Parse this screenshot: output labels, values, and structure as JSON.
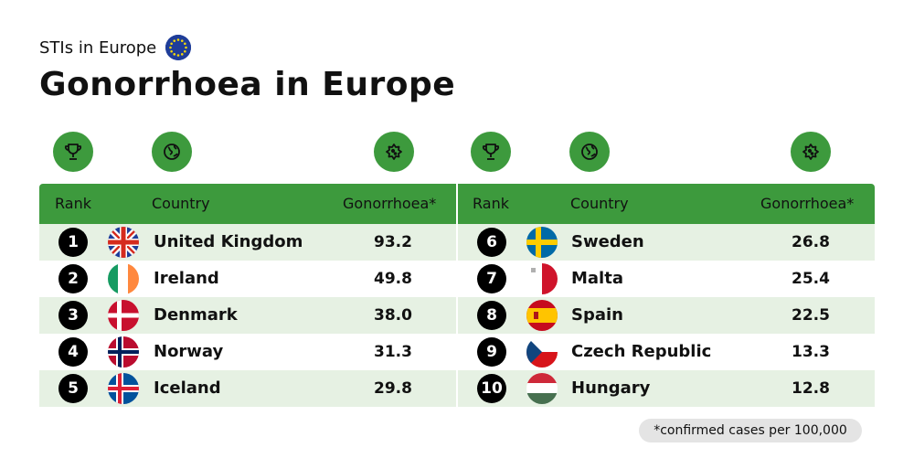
{
  "subtitle": "STIs in Europe",
  "title": "Gonorrhoea in Europe",
  "footnote": "*confirmed cases per 100,000",
  "headers": {
    "rank": "Rank",
    "country": "Country",
    "value": "Gonorrhoea*"
  },
  "icons": [
    "trophy-icon",
    "globe-icon",
    "virus-icon"
  ],
  "colors": {
    "accent": "#3d9a3d",
    "row_alt": "#e6f1e3",
    "rank_badge": "#000000"
  },
  "chart_data": {
    "type": "table",
    "title": "Gonorrhoea in Europe",
    "columns": [
      "Rank",
      "Country",
      "Gonorrhoea*"
    ],
    "rows": [
      {
        "rank": "1",
        "country": "United Kingdom",
        "value": "93.2"
      },
      {
        "rank": "2",
        "country": "Ireland",
        "value": "49.8"
      },
      {
        "rank": "3",
        "country": "Denmark",
        "value": "38.0"
      },
      {
        "rank": "4",
        "country": "Norway",
        "value": "31.3"
      },
      {
        "rank": "5",
        "country": "Iceland",
        "value": "29.8"
      },
      {
        "rank": "6",
        "country": "Sweden",
        "value": "26.8"
      },
      {
        "rank": "7",
        "country": "Malta",
        "value": "25.4"
      },
      {
        "rank": "8",
        "country": "Spain",
        "value": "22.5"
      },
      {
        "rank": "9",
        "country": "Czech Republic",
        "value": "13.3"
      },
      {
        "rank": "10",
        "country": "Hungary",
        "value": "12.8"
      }
    ]
  }
}
